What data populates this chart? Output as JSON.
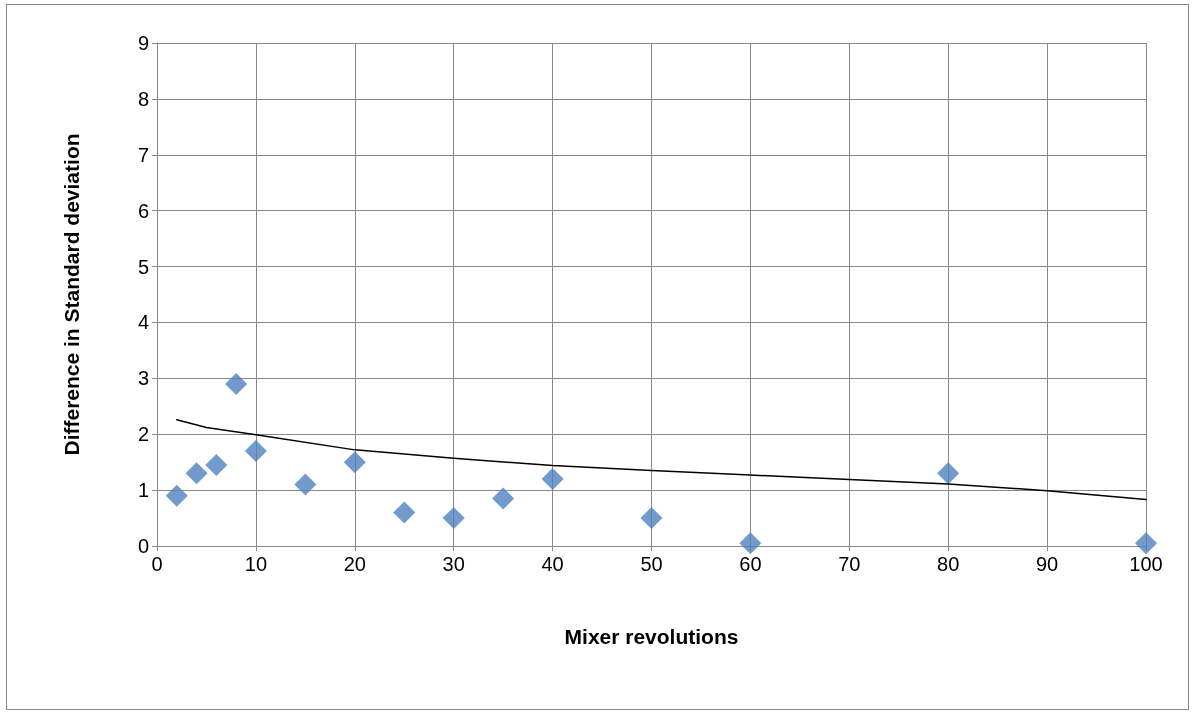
{
  "chart_data": {
    "type": "scatter",
    "xlabel": "Mixer revolutions",
    "ylabel": "Difference in Standard deviation",
    "xlim": [
      0,
      100
    ],
    "xticks": [
      0,
      10,
      20,
      30,
      40,
      50,
      60,
      70,
      80,
      90,
      100
    ],
    "ylim": [
      0,
      9
    ],
    "yticks": [
      0,
      1,
      2,
      3,
      4,
      5,
      6,
      7,
      8,
      9
    ],
    "grid": true,
    "marker": "diamond",
    "series": [
      {
        "color": "#4f81bd",
        "x": [
          2,
          4,
          6,
          8,
          10,
          15,
          20,
          25,
          30,
          35,
          40,
          50,
          60,
          80,
          100
        ],
        "values": [
          0.9,
          1.3,
          1.45,
          2.9,
          1.7,
          1.1,
          1.5,
          0.6,
          0.5,
          0.85,
          1.2,
          0.5,
          0.05,
          1.3,
          0.05
        ]
      },
      {
        "type": "line",
        "color": "#000000",
        "marker": "none",
        "line_style": "solid",
        "x": [
          2,
          5,
          10,
          20,
          30,
          40,
          50,
          60,
          70,
          80,
          90,
          100
        ],
        "values": [
          2.26,
          2.12,
          1.99,
          1.72,
          1.57,
          1.44,
          1.35,
          1.27,
          1.19,
          1.11,
          0.99,
          0.83
        ]
      }
    ]
  }
}
